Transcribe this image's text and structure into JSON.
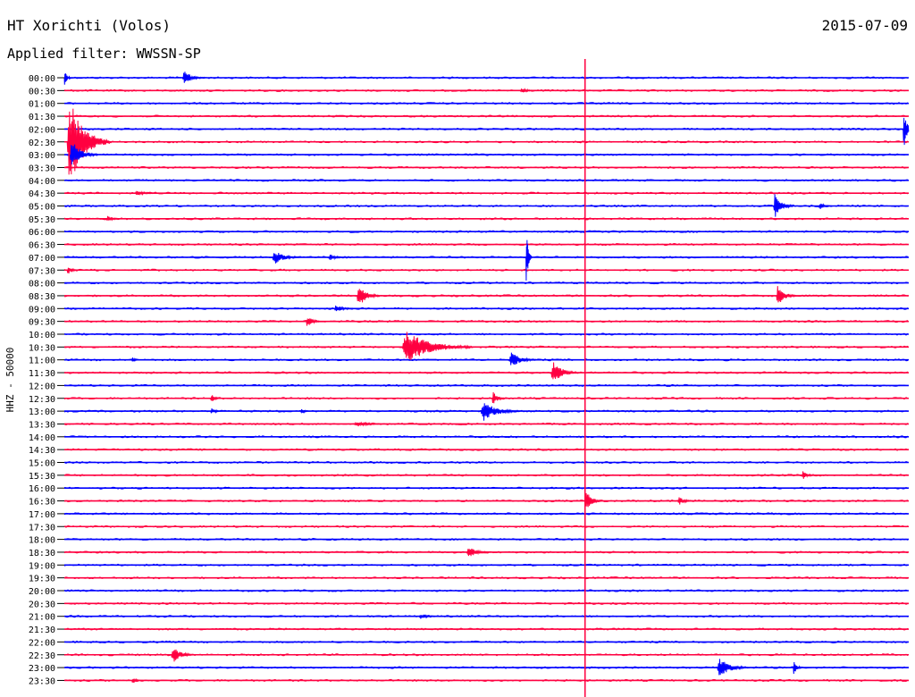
{
  "header": {
    "station": "HT Xorichti (Volos)",
    "filter": "Applied filter: WWSSN-SP",
    "date": "2015-07-09"
  },
  "chart_data": {
    "type": "helicorder",
    "channel_label": "HHZ - 50000",
    "colors": [
      "#0000ff",
      "#ff0040"
    ],
    "current_time_marker_color": "#ff0040",
    "times": [
      "00:00",
      "00:30",
      "01:00",
      "01:30",
      "02:00",
      "02:30",
      "03:00",
      "03:30",
      "04:00",
      "04:30",
      "05:00",
      "05:30",
      "06:00",
      "06:30",
      "07:00",
      "07:30",
      "08:00",
      "08:30",
      "09:00",
      "09:30",
      "10:00",
      "10:30",
      "11:00",
      "11:30",
      "12:00",
      "12:30",
      "13:00",
      "13:30",
      "14:00",
      "14:30",
      "15:00",
      "15:30",
      "16:00",
      "16:30",
      "17:00",
      "17:30",
      "18:00",
      "18:30",
      "19:00",
      "19:30",
      "20:00",
      "20:30",
      "21:00",
      "21:30",
      "22:00",
      "22:30",
      "23:00",
      "23:30"
    ],
    "marker_minute": 18.5,
    "minutes_per_line": 30,
    "events": [
      {
        "line": 0,
        "minute": 4.2,
        "amp": 10,
        "dur": 0.8
      },
      {
        "line": 0,
        "minute": 0.0,
        "amp": 14,
        "dur": 0.2
      },
      {
        "line": 1,
        "minute": 16.2,
        "amp": 3,
        "dur": 0.8
      },
      {
        "line": 5,
        "minute": 0.1,
        "amp": 60,
        "dur": 1.5
      },
      {
        "line": 4,
        "minute": 29.8,
        "amp": 30,
        "dur": 0.3
      },
      {
        "line": 6,
        "minute": 0.2,
        "amp": 20,
        "dur": 1.0
      },
      {
        "line": 10,
        "minute": 25.2,
        "amp": 18,
        "dur": 0.7
      },
      {
        "line": 10,
        "minute": 26.8,
        "amp": 5,
        "dur": 0.5
      },
      {
        "line": 9,
        "minute": 2.5,
        "amp": 3,
        "dur": 1.0
      },
      {
        "line": 11,
        "minute": 1.5,
        "amp": 4,
        "dur": 0.6
      },
      {
        "line": 14,
        "minute": 7.4,
        "amp": 10,
        "dur": 1.0
      },
      {
        "line": 14,
        "minute": 16.4,
        "amp": 40,
        "dur": 0.2
      },
      {
        "line": 14,
        "minute": 9.4,
        "amp": 5,
        "dur": 0.6
      },
      {
        "line": 15,
        "minute": 0.1,
        "amp": 6,
        "dur": 0.4
      },
      {
        "line": 17,
        "minute": 10.4,
        "amp": 16,
        "dur": 0.8
      },
      {
        "line": 17,
        "minute": 25.3,
        "amp": 14,
        "dur": 0.7
      },
      {
        "line": 18,
        "minute": 9.6,
        "amp": 5,
        "dur": 0.8
      },
      {
        "line": 19,
        "minute": 8.6,
        "amp": 9,
        "dur": 0.5
      },
      {
        "line": 21,
        "minute": 12.0,
        "amp": 22,
        "dur": 2.5
      },
      {
        "line": 22,
        "minute": 15.8,
        "amp": 11,
        "dur": 1.0
      },
      {
        "line": 22,
        "minute": 2.4,
        "amp": 4,
        "dur": 0.3
      },
      {
        "line": 23,
        "minute": 17.3,
        "amp": 17,
        "dur": 0.9
      },
      {
        "line": 25,
        "minute": 15.2,
        "amp": 9,
        "dur": 0.5
      },
      {
        "line": 25,
        "minute": 5.2,
        "amp": 7,
        "dur": 0.3
      },
      {
        "line": 26,
        "minute": 14.8,
        "amp": 14,
        "dur": 1.4
      },
      {
        "line": 26,
        "minute": 5.2,
        "amp": 5,
        "dur": 0.4
      },
      {
        "line": 26,
        "minute": 8.4,
        "amp": 4,
        "dur": 0.3
      },
      {
        "line": 27,
        "minute": 10.3,
        "amp": 4,
        "dur": 1.2
      },
      {
        "line": 31,
        "minute": 26.2,
        "amp": 6,
        "dur": 0.5
      },
      {
        "line": 33,
        "minute": 18.5,
        "amp": 14,
        "dur": 0.6
      },
      {
        "line": 33,
        "minute": 21.8,
        "amp": 6,
        "dur": 0.6
      },
      {
        "line": 37,
        "minute": 14.3,
        "amp": 9,
        "dur": 0.8
      },
      {
        "line": 42,
        "minute": 12.6,
        "amp": 4,
        "dur": 0.8
      },
      {
        "line": 45,
        "minute": 3.8,
        "amp": 12,
        "dur": 0.8
      },
      {
        "line": 46,
        "minute": 23.2,
        "amp": 14,
        "dur": 1.1
      },
      {
        "line": 46,
        "minute": 25.9,
        "amp": 10,
        "dur": 0.3
      },
      {
        "line": 47,
        "minute": 2.4,
        "amp": 4,
        "dur": 0.4
      }
    ]
  }
}
